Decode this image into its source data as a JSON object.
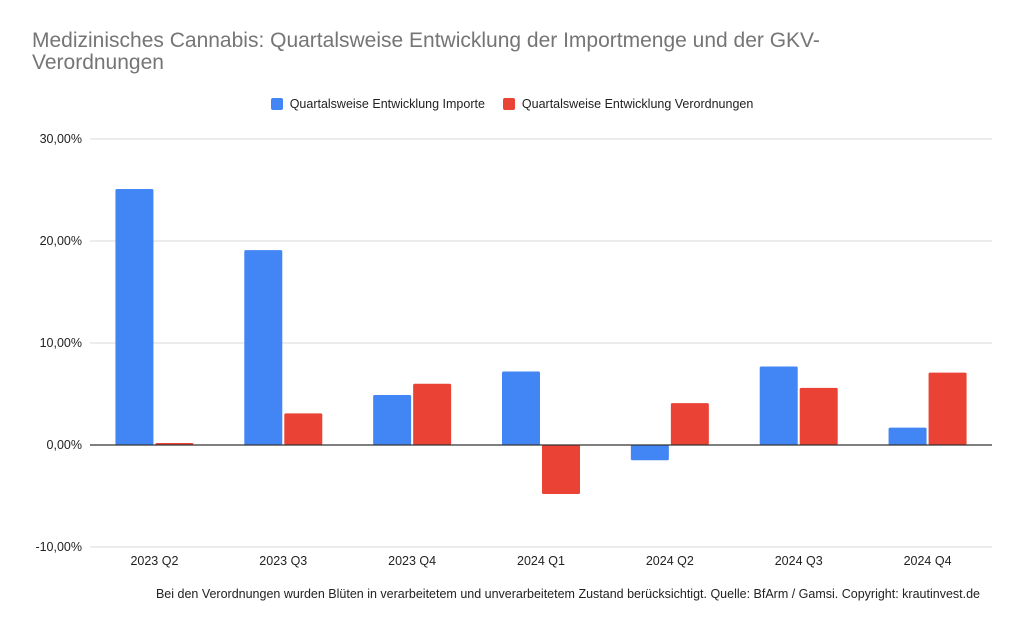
{
  "chart_data": {
    "type": "bar",
    "title": "Medizinisches Cannabis: Quartalsweise Entwicklung der Importmenge und der GKV-Verordnungen",
    "categories": [
      "2023 Q2",
      "2023 Q3",
      "2023 Q4",
      "2024 Q1",
      "2024 Q2",
      "2024 Q3",
      "2024 Q4"
    ],
    "series": [
      {
        "name": "Quartalsweise Entwicklung Importe",
        "color": "#4285f4",
        "values": [
          25.1,
          19.1,
          4.9,
          7.2,
          -1.5,
          7.7,
          1.7
        ]
      },
      {
        "name": "Quartalsweise Entwicklung Verordnungen",
        "color": "#ea4335",
        "values": [
          0.2,
          3.1,
          6.0,
          -4.8,
          4.1,
          5.6,
          7.1
        ]
      }
    ],
    "ylim": [
      -10,
      30
    ],
    "yticks": [
      -10,
      0,
      10,
      20,
      30
    ],
    "ytick_labels": [
      "-10,00%",
      "0,00%",
      "10,00%",
      "20,00%",
      "30,00%"
    ],
    "xlabel": "",
    "ylabel": "",
    "legend_position": "top",
    "grid": true,
    "footnote": "Bei den Verordnungen wurden Blüten in verarbeitetem und unverarbeitetem Zustand berücksichtigt. Quelle: BfArm / Gamsi. Copyright: krautinvest.de"
  }
}
